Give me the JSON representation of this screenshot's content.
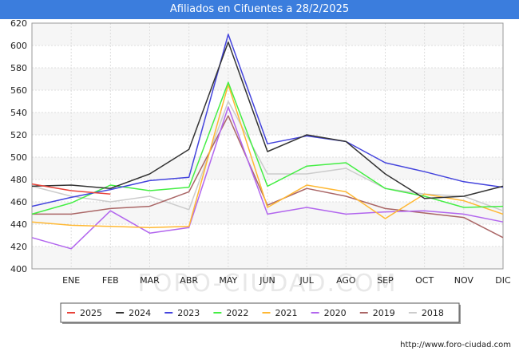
{
  "header": {
    "title": "Afiliados en Cifuentes a 28/2/2025"
  },
  "watermark": "FORO-CIUDAD.COM",
  "footer": {
    "url": "http://www.foro-ciudad.com"
  },
  "chart_data": {
    "type": "line",
    "title": "Afiliados en Cifuentes a 28/2/2025",
    "x_tick_labels": [
      "",
      "ENE",
      "FEB",
      "MAR",
      "ABR",
      "MAY",
      "JUN",
      "JUL",
      "AGO",
      "SEP",
      "OCT",
      "NOV",
      "DIC"
    ],
    "ylim": [
      400,
      620
    ],
    "yticks": [
      400,
      420,
      440,
      460,
      480,
      500,
      520,
      540,
      560,
      580,
      600,
      620
    ],
    "grid": true,
    "legend_position": "bottom",
    "series": [
      {
        "name": "2025",
        "color": "#e8433a",
        "values": [
          476,
          470,
          467
        ]
      },
      {
        "name": "2024",
        "color": "#333333",
        "values": [
          474,
          475,
          472,
          485,
          507,
          603,
          505,
          520,
          514,
          485,
          463,
          465,
          474
        ]
      },
      {
        "name": "2023",
        "color": "#4444dd",
        "values": [
          456,
          464,
          471,
          479,
          482,
          610,
          512,
          519,
          514,
          495,
          487,
          478,
          473
        ]
      },
      {
        "name": "2022",
        "color": "#44ee44",
        "values": [
          449,
          459,
          475,
          470,
          473,
          567,
          474,
          492,
          495,
          472,
          465,
          455,
          456
        ]
      },
      {
        "name": "2021",
        "color": "#ffb833",
        "values": [
          442,
          439,
          438,
          437,
          438,
          565,
          455,
          475,
          469,
          445,
          467,
          461,
          449
        ]
      },
      {
        "name": "2020",
        "color": "#b266ee",
        "values": [
          428,
          418,
          452,
          432,
          437,
          545,
          449,
          455,
          449,
          451,
          452,
          449,
          442
        ]
      },
      {
        "name": "2019",
        "color": "#aa6666",
        "values": [
          449,
          449,
          454,
          456,
          469,
          537,
          457,
          472,
          465,
          454,
          450,
          446,
          428
        ]
      },
      {
        "name": "2018",
        "color": "#cccccc",
        "values": [
          474,
          465,
          460,
          465,
          453,
          550,
          485,
          485,
          490,
          472,
          467,
          465,
          452
        ]
      }
    ]
  }
}
